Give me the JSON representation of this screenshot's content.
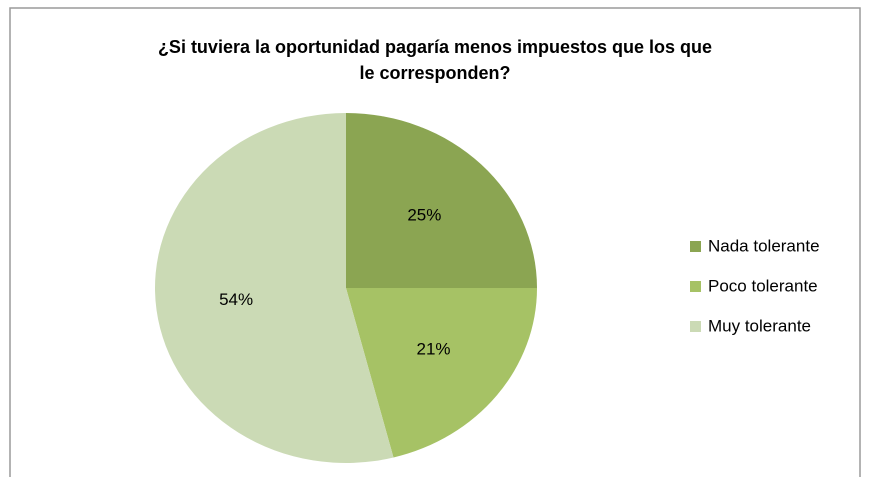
{
  "chart_data": {
    "type": "pie",
    "title": "¿Si tuviera la oportunidad pagaría menos impuestos que los que\nle corresponden?",
    "categories": [
      "Nada tolerante",
      "Poco tolerante",
      "Muy tolerante"
    ],
    "values": [
      25,
      21,
      54
    ],
    "value_labels": [
      "25%",
      "21%",
      "54%"
    ],
    "colors": [
      "#8ba552",
      "#a6c265",
      "#cbdab5"
    ],
    "legend": "right"
  }
}
